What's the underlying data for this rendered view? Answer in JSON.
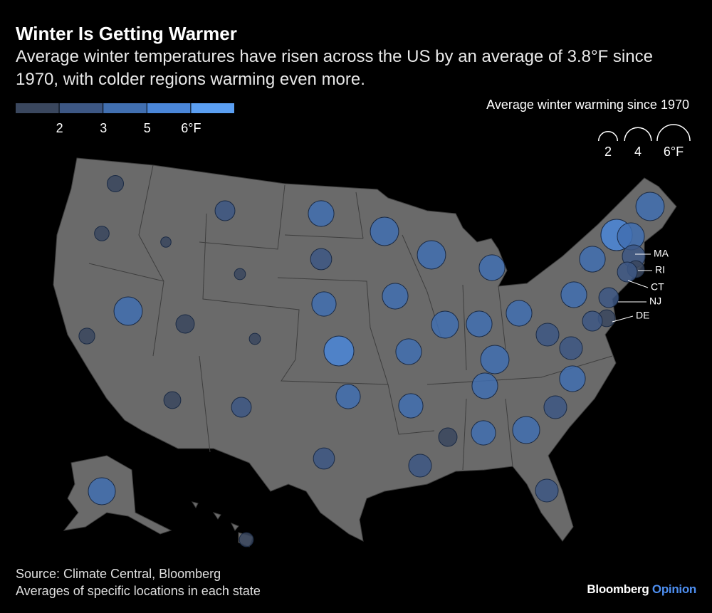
{
  "header": {
    "title": "Winter Is Getting Warmer",
    "subtitle": "Average winter temperatures have risen across the US by an average of 3.8°F since 1970, with colder regions warming even more."
  },
  "color_legend": {
    "colors": [
      "#3a475e",
      "#3d5784",
      "#416fb0",
      "#4a86d8",
      "#5b9ff2"
    ],
    "ticks": [
      2,
      3,
      5,
      {
        "value": 6,
        "label": "6°F"
      }
    ]
  },
  "size_legend": {
    "title": "Average winter warming since 1970",
    "ticks": [
      2,
      4,
      {
        "value": 6,
        "label": "6°F"
      }
    ]
  },
  "bubbles": {
    "values": [
      1.5,
      1.2,
      0.6,
      2.2,
      3.7,
      4.5,
      4.5,
      3.7,
      2.5,
      0.7,
      3.3,
      3.7,
      4.1,
      3.7,
      3.7,
      4.5,
      1.9,
      1.4,
      0.7,
      5.0,
      3.7,
      4.5,
      2.9,
      2.9,
      3.7,
      3.7,
      1.6,
      2.2,
      3.3,
      3.3,
      2.9,
      4.1,
      3.3,
      1.9,
      2.5,
      2.9,
      2.9,
      4.1,
      1.1,
      4.5,
      3.7,
      3.7,
      5.5,
      4.1,
      2.9,
      1.6,
      2.2,
      2.2,
      1.6,
      2.2
    ]
  },
  "callouts": [
    "MA",
    "RI",
    "CT",
    "NJ",
    "DE"
  ],
  "footer": {
    "source": "Source: Climate Central, Bloomberg",
    "note": "Averages of specific locations in each state",
    "brand": "Bloomberg",
    "brand_suffix": "Opinion"
  }
}
